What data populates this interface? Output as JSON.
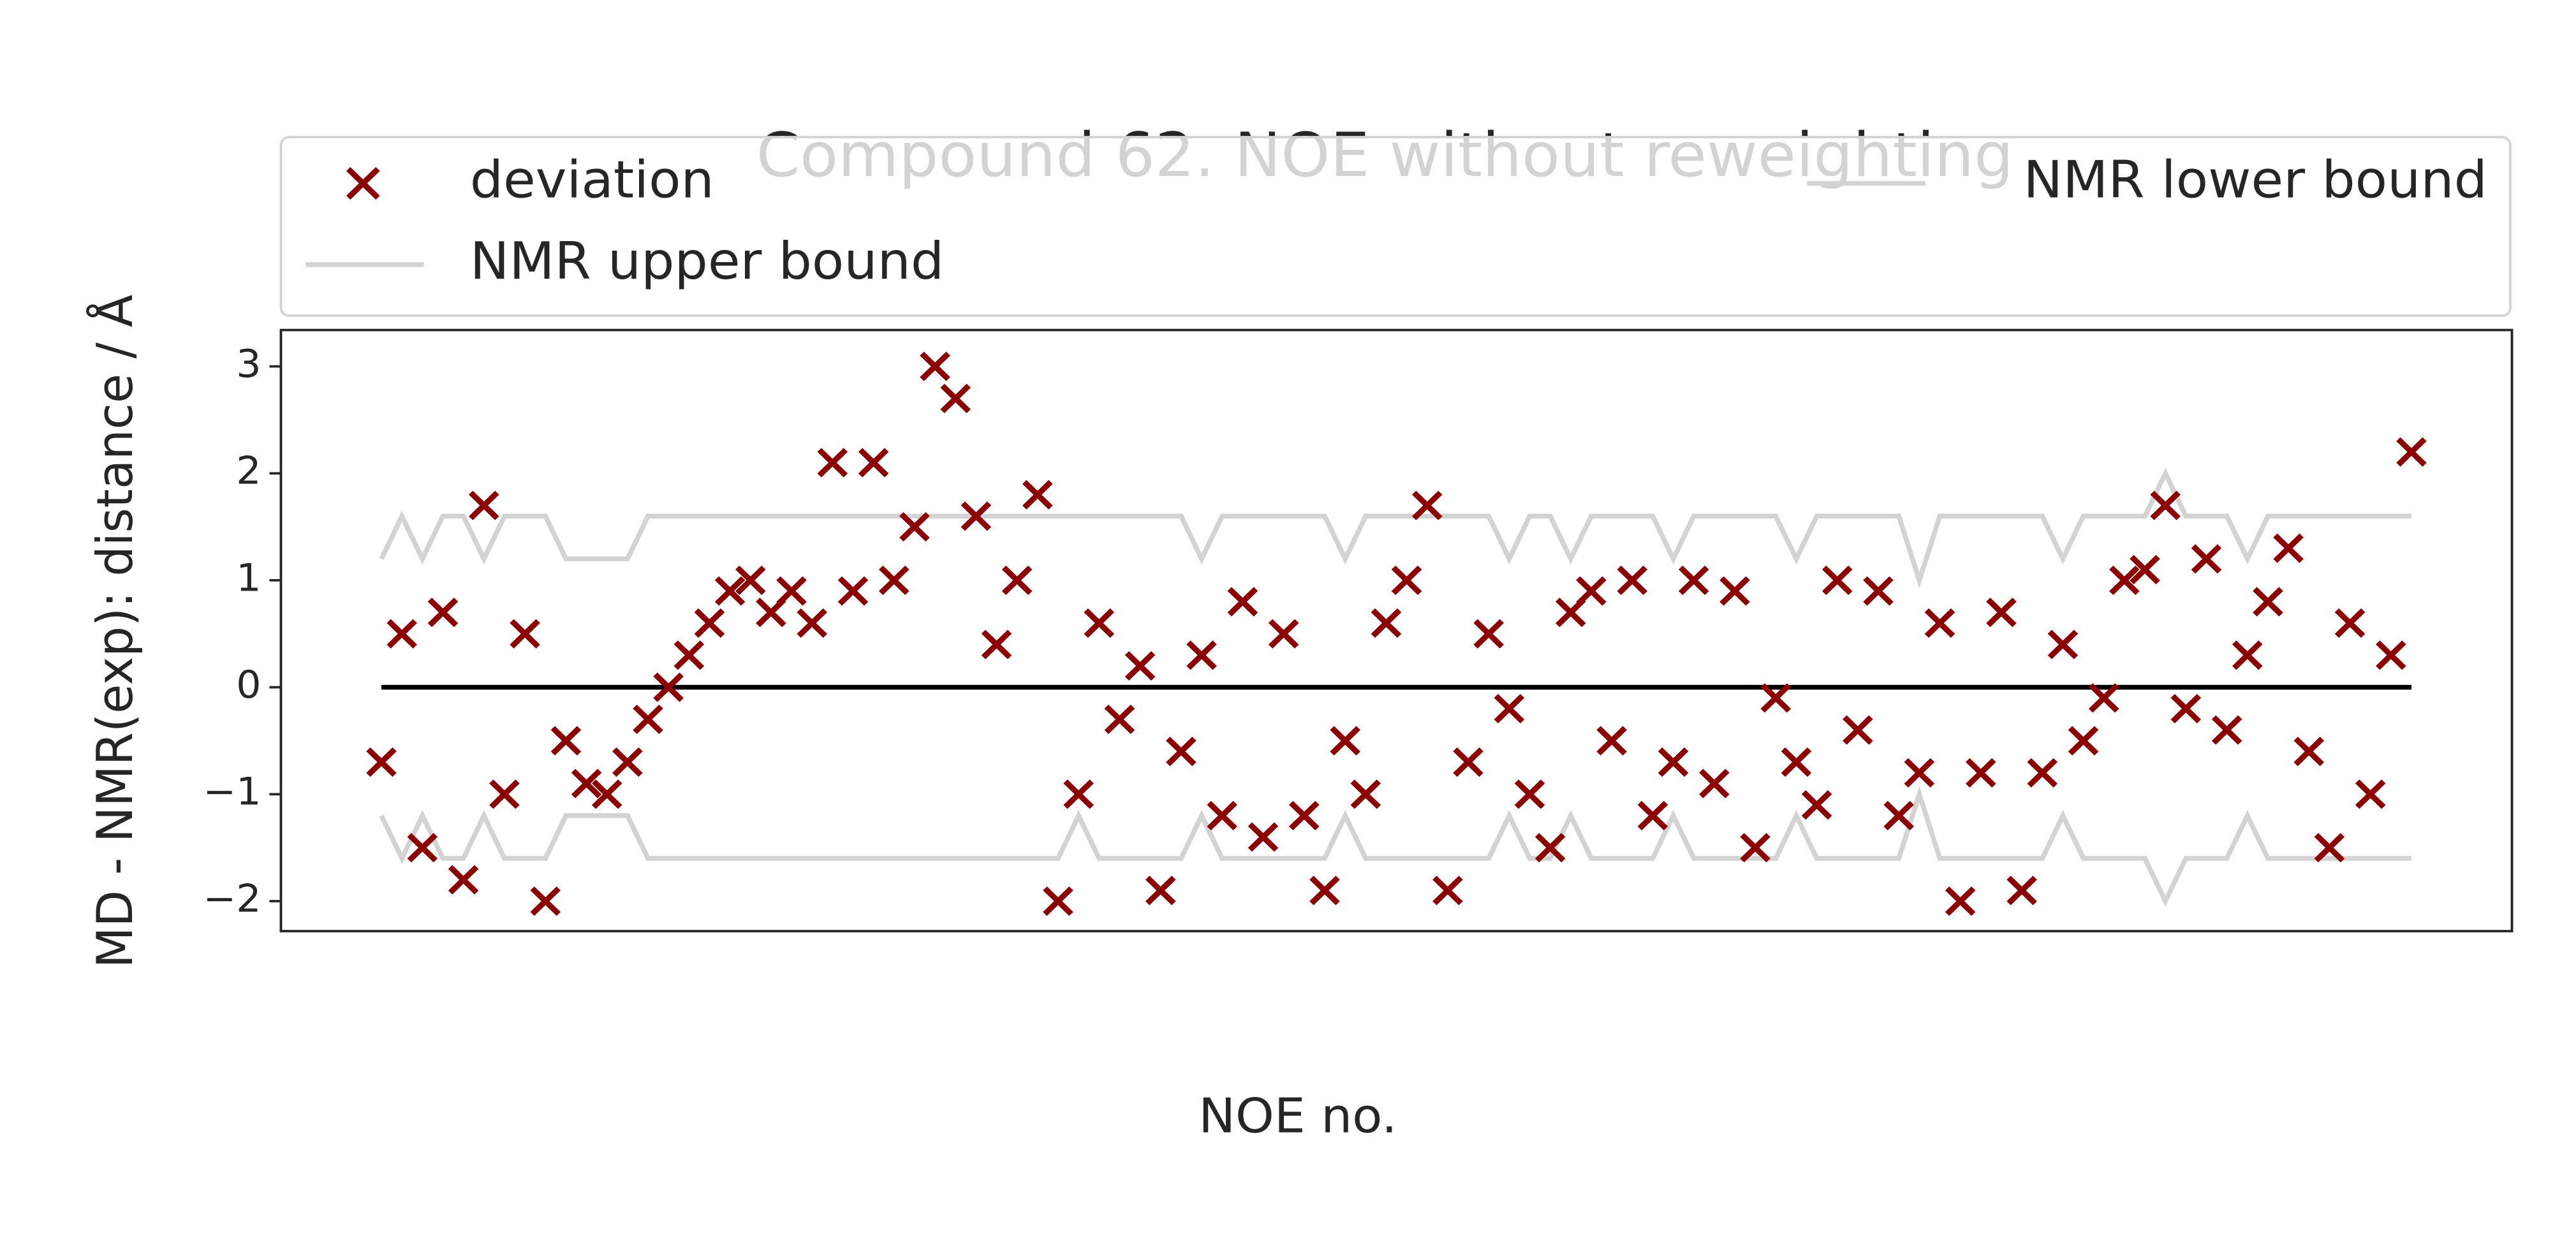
{
  "chart_data": {
    "type": "scatter",
    "title": "Compound 62. NOE without reweighting",
    "x_label": "NOE no.",
    "y_label": "MD - NMR(exp): distance / Å",
    "x": [
      0,
      1,
      2,
      3,
      4,
      5,
      6,
      7,
      8,
      9,
      10,
      11,
      12,
      13,
      14,
      15,
      16,
      17,
      18,
      19,
      20,
      21,
      22,
      23,
      24,
      25,
      26,
      27,
      28,
      29,
      30,
      31,
      32,
      33,
      34,
      35,
      36,
      37,
      38,
      39,
      40,
      41,
      42,
      43,
      44,
      45,
      46,
      47,
      48,
      49,
      50,
      51,
      52,
      53,
      54,
      55,
      56,
      57,
      58,
      59,
      60,
      61,
      62,
      63,
      64,
      65,
      66,
      67,
      68,
      69,
      70,
      71,
      72,
      73,
      74,
      75,
      76,
      77,
      78,
      79,
      80,
      81,
      82,
      83,
      84,
      85,
      86,
      87,
      88,
      89,
      90,
      91,
      92,
      93,
      94,
      95,
      96,
      97,
      98,
      99
    ],
    "series": [
      {
        "name": "deviation",
        "color": "#8b0000",
        "marker": "x",
        "values": [
          -0.7,
          0.5,
          -1.5,
          0.7,
          -1.8,
          1.7,
          -1.0,
          0.5,
          -2.0,
          -0.5,
          -0.9,
          -1.0,
          -0.7,
          -0.3,
          0.0,
          0.3,
          0.6,
          0.9,
          1.0,
          0.7,
          0.9,
          0.6,
          2.1,
          0.9,
          2.1,
          1.0,
          1.5,
          3.0,
          2.7,
          1.6,
          0.4,
          1.0,
          1.8,
          -2.0,
          -1.0,
          0.6,
          -0.3,
          0.2,
          -1.9,
          -0.6,
          0.3,
          -1.2,
          0.8,
          -1.4,
          0.5,
          -1.2,
          -1.9,
          -0.5,
          -1.0,
          0.6,
          1.0,
          1.7,
          -1.9,
          -0.7,
          0.5,
          -0.2,
          -1.0,
          -1.5,
          0.7,
          0.9,
          -0.5,
          1.0,
          -1.2,
          -0.7,
          1.0,
          -0.9,
          0.9,
          -1.5,
          -0.1,
          -0.7,
          -1.1,
          1.0,
          -0.4,
          0.9,
          -1.2,
          -0.8,
          0.6,
          -2.0,
          -0.8,
          0.7,
          -1.9,
          -0.8,
          0.4,
          -0.5,
          -0.1,
          1.0,
          1.1,
          1.7,
          -0.2,
          1.2,
          -0.4,
          0.3,
          0.8,
          1.3,
          -0.6,
          -1.5,
          0.6,
          -1.0,
          0.3,
          2.2
        ]
      },
      {
        "name": "NMR lower bound",
        "color": "#d3d3d3",
        "marker": "line",
        "values": [
          -1.2,
          -1.6,
          -1.2,
          -1.6,
          -1.6,
          -1.2,
          -1.6,
          -1.6,
          -1.6,
          -1.2,
          -1.2,
          -1.2,
          -1.2,
          -1.6,
          -1.6,
          -1.6,
          -1.6,
          -1.6,
          -1.6,
          -1.6,
          -1.6,
          -1.6,
          -1.6,
          -1.6,
          -1.6,
          -1.6,
          -1.6,
          -1.6,
          -1.6,
          -1.6,
          -1.6,
          -1.6,
          -1.6,
          -1.6,
          -1.2,
          -1.6,
          -1.6,
          -1.6,
          -1.6,
          -1.6,
          -1.2,
          -1.6,
          -1.6,
          -1.6,
          -1.6,
          -1.6,
          -1.6,
          -1.2,
          -1.6,
          -1.6,
          -1.6,
          -1.6,
          -1.6,
          -1.6,
          -1.6,
          -1.2,
          -1.6,
          -1.6,
          -1.2,
          -1.6,
          -1.6,
          -1.6,
          -1.6,
          -1.2,
          -1.6,
          -1.6,
          -1.6,
          -1.6,
          -1.6,
          -1.2,
          -1.6,
          -1.6,
          -1.6,
          -1.6,
          -1.6,
          -1.0,
          -1.6,
          -1.6,
          -1.6,
          -1.6,
          -1.6,
          -1.6,
          -1.2,
          -1.6,
          -1.6,
          -1.6,
          -1.6,
          -2.0,
          -1.6,
          -1.6,
          -1.6,
          -1.2,
          -1.6,
          -1.6,
          -1.6,
          -1.6,
          -1.6,
          -1.6,
          -1.6,
          -1.6
        ]
      },
      {
        "name": "NMR upper bound",
        "color": "#d3d3d3",
        "marker": "line",
        "values": [
          1.2,
          1.6,
          1.2,
          1.6,
          1.6,
          1.2,
          1.6,
          1.6,
          1.6,
          1.2,
          1.2,
          1.2,
          1.2,
          1.6,
          1.6,
          1.6,
          1.6,
          1.6,
          1.6,
          1.6,
          1.6,
          1.6,
          1.6,
          1.6,
          1.6,
          1.6,
          1.6,
          1.6,
          1.6,
          1.6,
          1.6,
          1.6,
          1.6,
          1.6,
          1.6,
          1.6,
          1.6,
          1.6,
          1.6,
          1.6,
          1.2,
          1.6,
          1.6,
          1.6,
          1.6,
          1.6,
          1.6,
          1.2,
          1.6,
          1.6,
          1.6,
          1.6,
          1.6,
          1.6,
          1.6,
          1.2,
          1.6,
          1.6,
          1.2,
          1.6,
          1.6,
          1.6,
          1.6,
          1.2,
          1.6,
          1.6,
          1.6,
          1.6,
          1.6,
          1.2,
          1.6,
          1.6,
          1.6,
          1.6,
          1.6,
          1.0,
          1.6,
          1.6,
          1.6,
          1.6,
          1.6,
          1.6,
          1.2,
          1.6,
          1.6,
          1.6,
          1.6,
          2.0,
          1.6,
          1.6,
          1.6,
          1.2,
          1.6,
          1.6,
          1.6,
          1.6,
          1.6,
          1.6,
          1.6,
          1.6
        ]
      }
    ],
    "hline": 0,
    "hline_color": "#000000",
    "xlim": [
      -4.9,
      103.9
    ],
    "ylim": [
      -2.28,
      3.34
    ],
    "yticks": [
      {
        "value": -2,
        "label": "−2"
      },
      {
        "value": -1,
        "label": "−1"
      },
      0,
      1,
      2,
      3
    ],
    "legend": "upper center"
  }
}
